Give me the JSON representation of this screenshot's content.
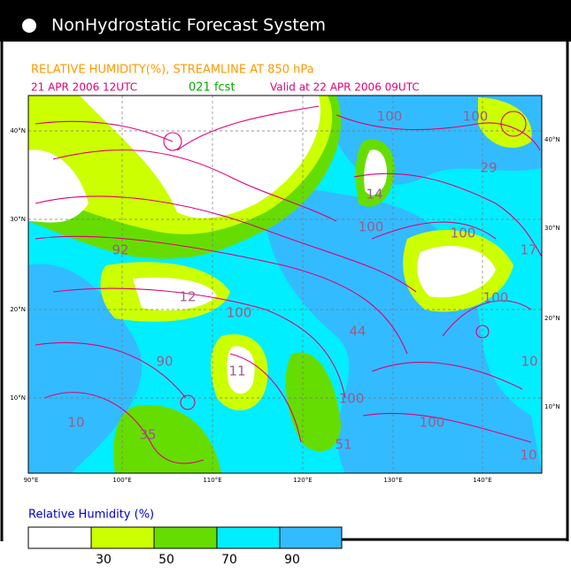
{
  "header": {
    "title": "NonHydrostatic Forecast System"
  },
  "map": {
    "title": "RELATIVE HUMIDITY(%), STREAMLINE AT 850 hPa",
    "init_time": "21 APR 2006 12UTC",
    "forecast": "021 fcst",
    "valid_time": "Valid at 22 APR 2006 09UTC",
    "lat_labels_left": [
      "40°N",
      "30°N",
      "20°N",
      "10°N"
    ],
    "lat_labels_right": [
      "40°N",
      "30°N",
      "20°N",
      "10°N"
    ],
    "lon_labels": [
      "90°E",
      "100°E",
      "110°E",
      "120°E",
      "130°E",
      "140°E"
    ],
    "contour_labels": [
      "100",
      "100",
      "29",
      "14",
      "100",
      "100",
      "17",
      "92",
      "12",
      "100",
      "100",
      "44",
      "90",
      "11",
      "100",
      "10",
      "100",
      "10",
      "35",
      "51",
      "10"
    ]
  },
  "legend": {
    "title": "Relative Humidity (%)",
    "ticks": [
      "30",
      "50",
      "70",
      "90"
    ]
  }
}
